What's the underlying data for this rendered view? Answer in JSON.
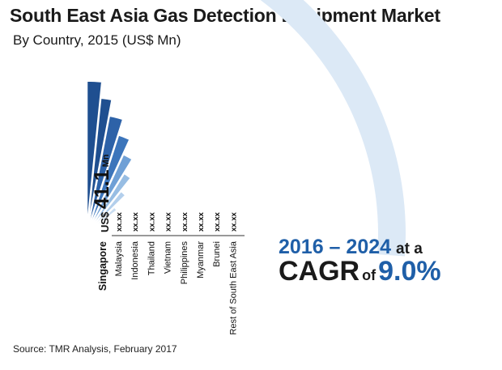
{
  "title": "South East Asia Gas Detection Equipment Market",
  "subtitle": "By Country, 2015 (US$ Mn)",
  "chart_data": {
    "type": "bar",
    "categories": [
      "Singapore",
      "Malaysia",
      "Indonesia",
      "Thailand",
      "Vietnam",
      "Philippines",
      "Myanmar",
      "Brunei",
      "Rest of South East Asia"
    ],
    "value_labels": [
      "US$ 41.1 Mn",
      "xx.xx",
      "xx.xx",
      "xx.xx",
      "xx.xx",
      "xx.xx",
      "xx.xx",
      "xx.xx",
      "xx.xx"
    ],
    "highlight": {
      "category": "Singapore",
      "currency": "US$",
      "value": "41.1",
      "unit": "Mn"
    },
    "colors": [
      "#dce9f6",
      "#c9ddf1",
      "#b3cfec",
      "#97bde3",
      "#6fa0d6",
      "#3c75bb",
      "#2d62a8",
      "#1f4f90"
    ]
  },
  "cagr": {
    "years": "2016 – 2024",
    "at_a": "at a",
    "cagr_word": "CAGR",
    "of_word": "of",
    "rate": "9.0%"
  },
  "source": "Source: TMR Analysis, February 2017"
}
